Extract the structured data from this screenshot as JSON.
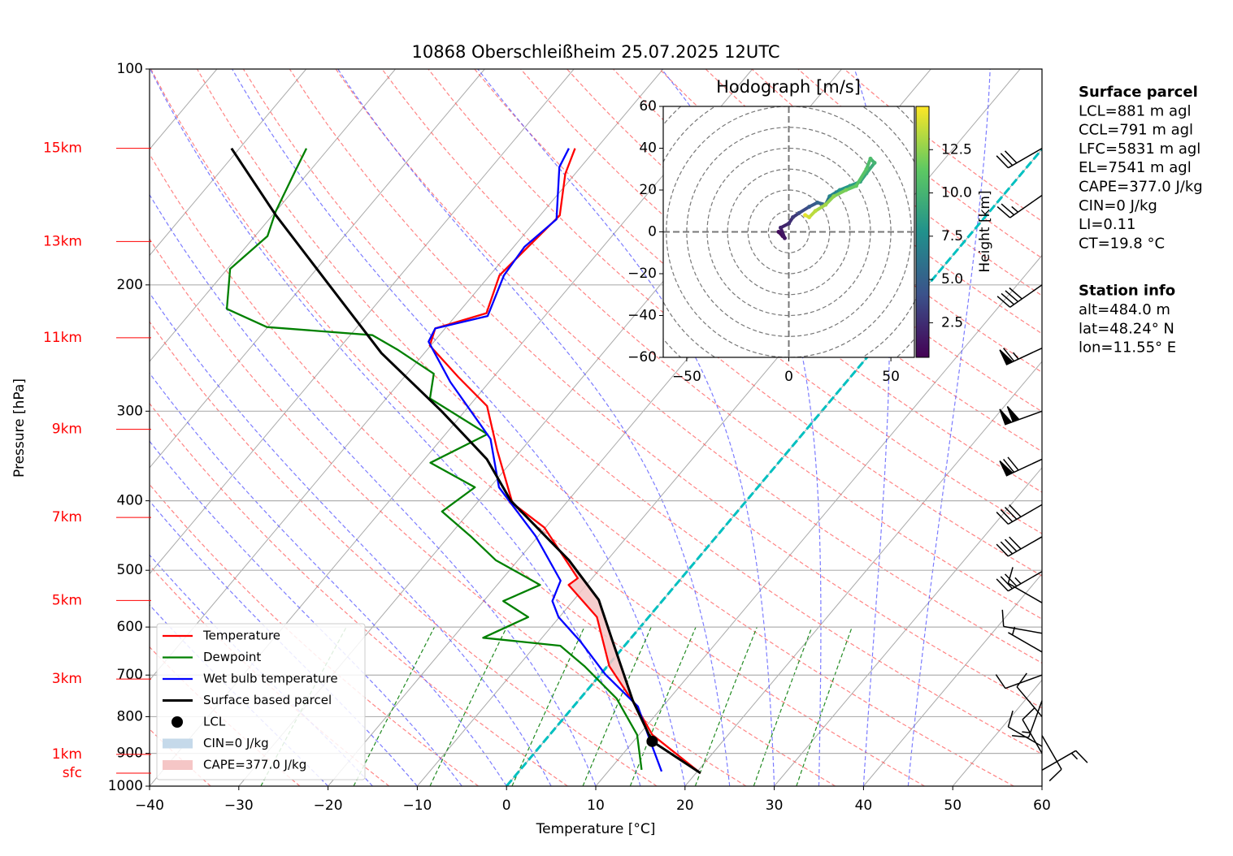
{
  "chart_data": [
    {
      "type": "skewt",
      "title": "10868 Oberschleißheim 25.07.2025 12UTC",
      "x_label": "Temperature [°C]",
      "y_label": "Pressure [hPa]",
      "xlim": [
        -40,
        60
      ],
      "xticks": [
        {
          "value": -40,
          "label": "−40"
        },
        {
          "value": -30,
          "label": "−30"
        },
        {
          "value": -20,
          "label": "−20"
        },
        {
          "value": -10,
          "label": "−10"
        },
        0,
        10,
        20,
        30,
        40,
        50,
        60
      ],
      "ylim": [
        1000,
        100
      ],
      "yticks": [
        100,
        200,
        300,
        400,
        500,
        600,
        700,
        800,
        900,
        1000
      ],
      "log_y": true,
      "grid": true,
      "legend_position": "lower left",
      "series": [
        {
          "name": "Temperature",
          "color": "#ff0000",
          "pressure": [
            959,
            848,
            774,
            680,
            581,
            524,
            513,
            436,
            403,
            340,
            295,
            269,
            243,
            230,
            219,
            194,
            177,
            160,
            140,
            129
          ],
          "values": [
            20.5,
            11.5,
            7.0,
            0.2,
            -5.8,
            -12.0,
            -11.6,
            -20.1,
            -26.0,
            -32.7,
            -38.0,
            -43.9,
            -50.1,
            -51.1,
            -46.8,
            -48.9,
            -48.4,
            -47.8,
            -51.1,
            -52.4
          ]
        },
        {
          "name": "Dewpoint",
          "color": "#008000",
          "pressure": [
            949,
            848,
            755,
            680,
            637,
            621,
            581,
            552,
            524,
            484,
            448,
            414,
            383,
            354,
            323,
            288,
            266,
            246,
            235,
            229,
            216,
            190,
            171,
            158,
            139,
            129
          ],
          "values": [
            13.6,
            9.8,
            4.1,
            -2.6,
            -7.2,
            -16.6,
            -13.5,
            -17.8,
            -15.2,
            -22.5,
            -27.6,
            -33.1,
            -31.7,
            -39.0,
            -35.3,
            -45.1,
            -47.0,
            -53.4,
            -57.5,
            -70.1,
            -76.3,
            -79.7,
            -78.6,
            -80.0,
            -81.6,
            -82.5
          ]
        },
        {
          "name": "Wet bulb temperature",
          "color": "#0000ff",
          "pressure": [
            954,
            860,
            774,
            698,
            629,
            581,
            552,
            517,
            448,
            383,
            328,
            273,
            240,
            230,
            221,
            194,
            177,
            162,
            137,
            129
          ],
          "values": [
            16.0,
            11.6,
            7.2,
            0.5,
            -5.3,
            -10.1,
            -12.3,
            -13.3,
            -20.3,
            -29.0,
            -34.5,
            -44.4,
            -50.6,
            -51.1,
            -46.4,
            -48.4,
            -48.8,
            -47.8,
            -52.4,
            -53.1
          ]
        },
        {
          "name": "Surface based parcel",
          "color": "#000000",
          "pressure": [
            959,
            866,
            760,
            629,
            550,
            484,
            400,
            350,
            300,
            249,
            200,
            160,
            129
          ],
          "values": [
            20.5,
            12.1,
            6.1,
            -1.7,
            -7.2,
            -14.3,
            -26.4,
            -33.0,
            -42.6,
            -54.8,
            -67.1,
            -79.6,
            -90.9
          ]
        }
      ],
      "lcl": {
        "name": "LCL",
        "color": "#000000",
        "pressure": 866,
        "value": 12.1
      },
      "cin": {
        "name": "CIN=0 J/kg",
        "color": "#c5d9ea"
      },
      "cape": {
        "name": "CAPE=377.0 J/kg",
        "color": "#f5c6c6"
      },
      "height_axis": {
        "color": "#ff0000",
        "labels": [
          "15km",
          "13km",
          "11km",
          "9km",
          "7km",
          "5km",
          "3km",
          "1km",
          "sfc"
        ],
        "pressure": [
          129,
          174,
          237,
          318,
          422,
          551,
          709,
          903,
          959
        ]
      },
      "wind": {
        "pressure": [
          129,
          150,
          200,
          245,
          300,
          350,
          405,
          449,
          502,
          555,
          612,
          650,
          700,
          760,
          800,
          850,
          880,
          900,
          950
        ],
        "speed": [
          30,
          25,
          40,
          65,
          100,
          70,
          40,
          40,
          35,
          10,
          10,
          5,
          10,
          15,
          10,
          10,
          10,
          10,
          15
        ],
        "direction": [
          240,
          235,
          235,
          245,
          250,
          245,
          240,
          240,
          240,
          300,
          280,
          300,
          250,
          200,
          320,
          150,
          300,
          330,
          60
        ]
      }
    },
    {
      "type": "hodograph",
      "title": "Hodograph [m/s]",
      "xlim": [
        -61.5,
        61.5
      ],
      "ylim": [
        -60,
        60
      ],
      "xticks": [
        {
          "value": -50,
          "label": "−50"
        },
        0,
        50
      ],
      "yticks": [
        {
          "value": -60,
          "label": "−60"
        },
        {
          "value": -40,
          "label": "−40"
        },
        {
          "value": -20,
          "label": "−20"
        },
        0,
        20,
        40,
        60
      ],
      "u": [
        -3,
        -5,
        -2,
        -4,
        0,
        2,
        5,
        10,
        14,
        18,
        20,
        25,
        30,
        35,
        38,
        42,
        40,
        38,
        33,
        28,
        22,
        18,
        13,
        10,
        8
      ],
      "v": [
        -2,
        0,
        -3,
        2,
        4,
        7,
        9,
        12,
        14,
        13,
        17,
        20,
        22,
        24,
        28,
        33,
        35,
        30,
        22,
        20,
        17,
        13,
        10,
        7,
        8
      ],
      "height": [
        0.5,
        1,
        1.5,
        2,
        2.5,
        3,
        3.8,
        4.5,
        5.2,
        6,
        7,
        8,
        8.5,
        9,
        9.5,
        10,
        10.5,
        11,
        11.5,
        12,
        12.5,
        13,
        13.5,
        14,
        14.5
      ],
      "colormap": "viridis",
      "colorbar": {
        "label": "Height [km]",
        "lim": [
          0.5,
          15
        ],
        "ticks": [
          2.5,
          {
            "value": 5,
            "label": "5.0"
          },
          7.5,
          {
            "value": 10,
            "label": "10.0"
          },
          12.5
        ]
      }
    }
  ],
  "text_panel": {
    "surface_parcel": {
      "heading": "Surface parcel",
      "lines": [
        "LCL=881 m agl",
        "CCL=791 m agl",
        "LFC=5831 m agl",
        "EL=7541 m agl",
        "CAPE=377.0 J/kg",
        "CIN=0 J/kg",
        "LI=0.11",
        "CT=19.8 °C"
      ]
    },
    "station_info": {
      "heading": "Station info",
      "lines": [
        "alt=484.0 m",
        "lat=48.24° N",
        "lon=11.55° E"
      ]
    }
  }
}
